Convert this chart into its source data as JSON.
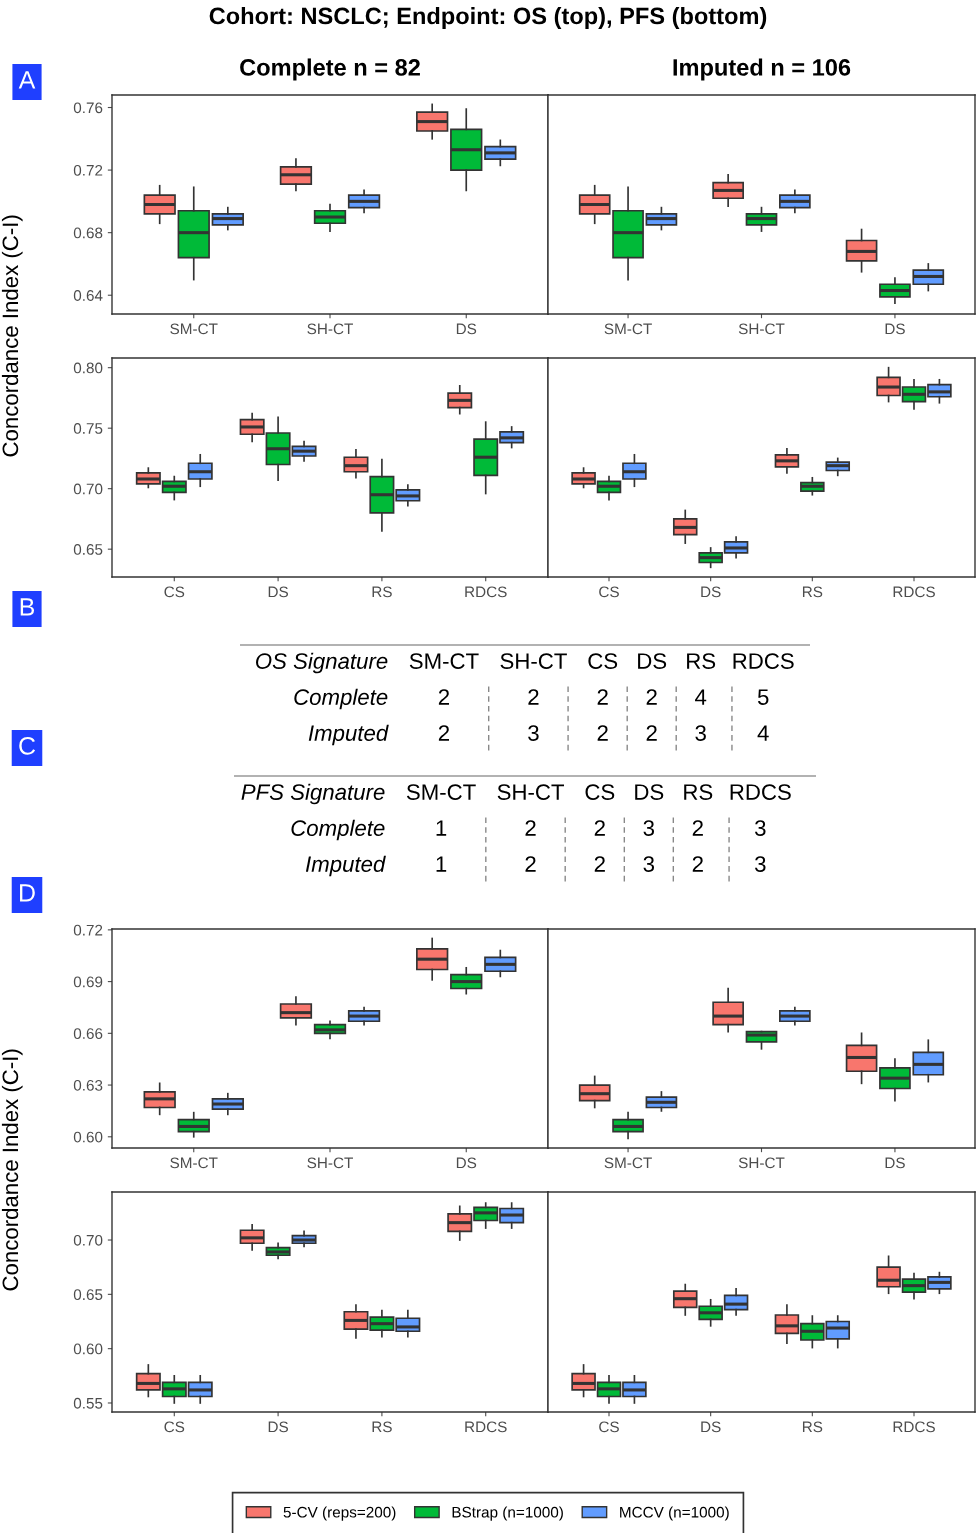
{
  "chart_data": [
    {
      "type": "box",
      "title": "Complete n = 82",
      "ylabel": "Concordance Index (C-I)",
      "annotations": [
        "Cohort: NSCLC; Endpoint: OS (top), PFS (bottom)",
        "A"
      ],
      "categories": [
        "SM-CT",
        "SH-CT",
        "DS"
      ],
      "ylim": [
        0.628,
        0.768
      ],
      "yticks": [
        {
          "value": 0.64,
          "label": "0.64"
        },
        {
          "value": 0.68,
          "label": "0.68"
        },
        {
          "value": 0.72,
          "label": "0.72"
        },
        {
          "value": 0.76,
          "label": "0.76"
        }
      ],
      "grid": false,
      "legend": "bottom",
      "series": [
        {
          "name": "5-CV (reps=200)",
          "color": "#f8766d",
          "boxes": [
            {
              "low": 0.686,
              "q1": 0.692,
              "median": 0.698,
              "q3": 0.704,
              "high": 0.71
            },
            {
              "low": 0.707,
              "q1": 0.711,
              "median": 0.717,
              "q3": 0.722,
              "high": 0.727
            },
            {
              "low": 0.74,
              "q1": 0.745,
              "median": 0.751,
              "q3": 0.757,
              "high": 0.762
            }
          ]
        },
        {
          "name": "BStrap (n=1000)",
          "color": "#00ba38",
          "boxes": [
            {
              "low": 0.65,
              "q1": 0.664,
              "median": 0.68,
              "q3": 0.694,
              "high": 0.709
            },
            {
              "low": 0.681,
              "q1": 0.686,
              "median": 0.69,
              "q3": 0.694,
              "high": 0.698
            },
            {
              "low": 0.707,
              "q1": 0.72,
              "median": 0.733,
              "q3": 0.746,
              "high": 0.759
            }
          ]
        },
        {
          "name": "MCCV (n=1000)",
          "color": "#619cff",
          "boxes": [
            {
              "low": 0.682,
              "q1": 0.685,
              "median": 0.689,
              "q3": 0.692,
              "high": 0.696
            },
            {
              "low": 0.693,
              "q1": 0.696,
              "median": 0.7,
              "q3": 0.704,
              "high": 0.707
            },
            {
              "low": 0.723,
              "q1": 0.727,
              "median": 0.731,
              "q3": 0.735,
              "high": 0.739
            }
          ]
        }
      ]
    },
    {
      "type": "box",
      "title": "Imputed n = 106",
      "categories": [
        "SM-CT",
        "SH-CT",
        "DS"
      ],
      "ylim": [
        0.628,
        0.768
      ],
      "tick_labels": "x",
      "grid": false,
      "series": [
        {
          "color": "#f8766d",
          "boxes": [
            {
              "low": 0.686,
              "q1": 0.692,
              "median": 0.698,
              "q3": 0.704,
              "high": 0.71
            },
            {
              "low": 0.697,
              "q1": 0.702,
              "median": 0.707,
              "q3": 0.712,
              "high": 0.717
            },
            {
              "low": 0.655,
              "q1": 0.662,
              "median": 0.668,
              "q3": 0.675,
              "high": 0.682
            }
          ]
        },
        {
          "color": "#00ba38",
          "boxes": [
            {
              "low": 0.65,
              "q1": 0.664,
              "median": 0.68,
              "q3": 0.694,
              "high": 0.709
            },
            {
              "low": 0.681,
              "q1": 0.685,
              "median": 0.689,
              "q3": 0.692,
              "high": 0.696
            },
            {
              "low": 0.635,
              "q1": 0.639,
              "median": 0.643,
              "q3": 0.647,
              "high": 0.651
            }
          ]
        },
        {
          "color": "#619cff",
          "boxes": [
            {
              "low": 0.682,
              "q1": 0.685,
              "median": 0.689,
              "q3": 0.692,
              "high": 0.696
            },
            {
              "low": 0.693,
              "q1": 0.696,
              "median": 0.7,
              "q3": 0.704,
              "high": 0.707
            },
            {
              "low": 0.643,
              "q1": 0.647,
              "median": 0.652,
              "q3": 0.656,
              "high": 0.66
            }
          ]
        }
      ]
    },
    {
      "type": "box",
      "categories": [
        "CS",
        "DS",
        "RS",
        "RDCS"
      ],
      "ylim": [
        0.627,
        0.808
      ],
      "yticks": [
        {
          "value": 0.65,
          "label": "0.65"
        },
        {
          "value": 0.7,
          "label": "0.70"
        },
        {
          "value": 0.75,
          "label": "0.75"
        },
        {
          "value": 0.8,
          "label": "0.80"
        }
      ],
      "grid": false,
      "series": [
        {
          "color": "#f8766d",
          "boxes": [
            {
              "low": 0.701,
              "q1": 0.704,
              "median": 0.708,
              "q3": 0.713,
              "high": 0.717
            },
            {
              "low": 0.739,
              "q1": 0.745,
              "median": 0.751,
              "q3": 0.757,
              "high": 0.762
            },
            {
              "low": 0.709,
              "q1": 0.714,
              "median": 0.719,
              "q3": 0.726,
              "high": 0.732
            },
            {
              "low": 0.762,
              "q1": 0.767,
              "median": 0.773,
              "q3": 0.779,
              "high": 0.785
            }
          ]
        },
        {
          "color": "#00ba38",
          "boxes": [
            {
              "low": 0.691,
              "q1": 0.697,
              "median": 0.702,
              "q3": 0.706,
              "high": 0.71
            },
            {
              "low": 0.707,
              "q1": 0.72,
              "median": 0.733,
              "q3": 0.746,
              "high": 0.759
            },
            {
              "low": 0.665,
              "q1": 0.68,
              "median": 0.695,
              "q3": 0.71,
              "high": 0.724
            },
            {
              "low": 0.696,
              "q1": 0.711,
              "median": 0.726,
              "q3": 0.741,
              "high": 0.755
            }
          ]
        },
        {
          "color": "#619cff",
          "boxes": [
            {
              "low": 0.702,
              "q1": 0.708,
              "median": 0.714,
              "q3": 0.721,
              "high": 0.728
            },
            {
              "low": 0.723,
              "q1": 0.727,
              "median": 0.731,
              "q3": 0.735,
              "high": 0.739
            },
            {
              "low": 0.686,
              "q1": 0.69,
              "median": 0.694,
              "q3": 0.699,
              "high": 0.703
            },
            {
              "low": 0.734,
              "q1": 0.738,
              "median": 0.742,
              "q3": 0.747,
              "high": 0.751
            }
          ]
        }
      ]
    },
    {
      "type": "box",
      "categories": [
        "CS",
        "DS",
        "RS",
        "RDCS"
      ],
      "ylim": [
        0.627,
        0.808
      ],
      "tick_labels": "x",
      "grid": false,
      "series": [
        {
          "color": "#f8766d",
          "boxes": [
            {
              "low": 0.701,
              "q1": 0.704,
              "median": 0.708,
              "q3": 0.713,
              "high": 0.717
            },
            {
              "low": 0.655,
              "q1": 0.662,
              "median": 0.668,
              "q3": 0.675,
              "high": 0.682
            },
            {
              "low": 0.713,
              "q1": 0.718,
              "median": 0.723,
              "q3": 0.728,
              "high": 0.733
            },
            {
              "low": 0.772,
              "q1": 0.777,
              "median": 0.784,
              "q3": 0.792,
              "high": 0.8
            }
          ]
        },
        {
          "color": "#00ba38",
          "boxes": [
            {
              "low": 0.691,
              "q1": 0.697,
              "median": 0.702,
              "q3": 0.706,
              "high": 0.71
            },
            {
              "low": 0.635,
              "q1": 0.639,
              "median": 0.643,
              "q3": 0.647,
              "high": 0.651
            },
            {
              "low": 0.695,
              "q1": 0.698,
              "median": 0.702,
              "q3": 0.705,
              "high": 0.709
            },
            {
              "low": 0.766,
              "q1": 0.772,
              "median": 0.778,
              "q3": 0.784,
              "high": 0.79
            }
          ]
        },
        {
          "color": "#619cff",
          "boxes": [
            {
              "low": 0.702,
              "q1": 0.708,
              "median": 0.714,
              "q3": 0.721,
              "high": 0.728
            },
            {
              "low": 0.643,
              "q1": 0.647,
              "median": 0.651,
              "q3": 0.656,
              "high": 0.66
            },
            {
              "low": 0.711,
              "q1": 0.715,
              "median": 0.719,
              "q3": 0.722,
              "high": 0.725
            },
            {
              "low": 0.771,
              "q1": 0.776,
              "median": 0.78,
              "q3": 0.786,
              "high": 0.79
            }
          ]
        }
      ]
    },
    {
      "type": "other",
      "title": "OS Signature",
      "annotations": [
        "B"
      ],
      "categories": [
        "SM-CT",
        "SH-CT",
        "CS",
        "DS",
        "RS",
        "RDCS"
      ],
      "y_categories": [
        "Complete",
        "Imputed"
      ],
      "cell_labels": [
        [
          "2",
          "2",
          "2",
          "2",
          "4",
          "5"
        ],
        [
          "2",
          "3",
          "2",
          "2",
          "3",
          "4"
        ]
      ]
    },
    {
      "type": "other",
      "title": "PFS Signature",
      "annotations": [
        "C"
      ],
      "categories": [
        "SM-CT",
        "SH-CT",
        "CS",
        "DS",
        "RS",
        "RDCS"
      ],
      "y_categories": [
        "Complete",
        "Imputed"
      ],
      "cell_labels": [
        [
          "1",
          "2",
          "2",
          "3",
          "2",
          "3"
        ],
        [
          "1",
          "2",
          "2",
          "3",
          "2",
          "3"
        ]
      ]
    },
    {
      "type": "box",
      "ylabel": "Concordance Index (C-I)",
      "annotations": [
        "D"
      ],
      "categories": [
        "SM-CT",
        "SH-CT",
        "DS"
      ],
      "ylim": [
        0.5935,
        0.7205
      ],
      "yticks": [
        {
          "value": 0.6,
          "label": "0.60"
        },
        {
          "value": 0.63,
          "label": "0.63"
        },
        {
          "value": 0.66,
          "label": "0.66"
        },
        {
          "value": 0.69,
          "label": "0.69"
        },
        {
          "value": 0.72,
          "label": "0.72"
        }
      ],
      "grid": false,
      "series": [
        {
          "color": "#f8766d",
          "boxes": [
            {
              "low": 0.613,
              "q1": 0.617,
              "median": 0.622,
              "q3": 0.626,
              "high": 0.631
            },
            {
              "low": 0.665,
              "q1": 0.669,
              "median": 0.672,
              "q3": 0.677,
              "high": 0.681
            },
            {
              "low": 0.691,
              "q1": 0.697,
              "median": 0.703,
              "q3": 0.709,
              "high": 0.715
            }
          ]
        },
        {
          "color": "#00ba38",
          "boxes": [
            {
              "low": 0.6,
              "q1": 0.603,
              "median": 0.606,
              "q3": 0.61,
              "high": 0.614
            },
            {
              "low": 0.657,
              "q1": 0.66,
              "median": 0.662,
              "q3": 0.665,
              "high": 0.667
            },
            {
              "low": 0.683,
              "q1": 0.686,
              "median": 0.69,
              "q3": 0.694,
              "high": 0.698
            }
          ]
        },
        {
          "color": "#619cff",
          "boxes": [
            {
              "low": 0.613,
              "q1": 0.616,
              "median": 0.619,
              "q3": 0.622,
              "high": 0.625
            },
            {
              "low": 0.665,
              "q1": 0.667,
              "median": 0.67,
              "q3": 0.673,
              "high": 0.675
            },
            {
              "low": 0.693,
              "q1": 0.696,
              "median": 0.7,
              "q3": 0.704,
              "high": 0.708
            }
          ]
        }
      ]
    },
    {
      "type": "box",
      "categories": [
        "SM-CT",
        "SH-CT",
        "DS"
      ],
      "ylim": [
        0.5935,
        0.7205
      ],
      "tick_labels": "x",
      "grid": false,
      "series": [
        {
          "color": "#f8766d",
          "boxes": [
            {
              "low": 0.617,
              "q1": 0.621,
              "median": 0.625,
              "q3": 0.63,
              "high": 0.635
            },
            {
              "low": 0.661,
              "q1": 0.665,
              "median": 0.67,
              "q3": 0.678,
              "high": 0.686
            },
            {
              "low": 0.631,
              "q1": 0.638,
              "median": 0.646,
              "q3": 0.653,
              "high": 0.66
            }
          ]
        },
        {
          "color": "#00ba38",
          "boxes": [
            {
              "low": 0.599,
              "q1": 0.603,
              "median": 0.606,
              "q3": 0.61,
              "high": 0.614
            },
            {
              "low": 0.651,
              "q1": 0.655,
              "median": 0.659,
              "q3": 0.661,
              "high": 0.661
            },
            {
              "low": 0.621,
              "q1": 0.628,
              "median": 0.634,
              "q3": 0.64,
              "high": 0.645
            }
          ]
        },
        {
          "color": "#619cff",
          "boxes": [
            {
              "low": 0.615,
              "q1": 0.617,
              "median": 0.62,
              "q3": 0.623,
              "high": 0.626
            },
            {
              "low": 0.665,
              "q1": 0.667,
              "median": 0.67,
              "q3": 0.673,
              "high": 0.675
            },
            {
              "low": 0.632,
              "q1": 0.636,
              "median": 0.642,
              "q3": 0.649,
              "high": 0.656
            }
          ]
        }
      ]
    },
    {
      "type": "box",
      "categories": [
        "CS",
        "DS",
        "RS",
        "RDCS"
      ],
      "ylim": [
        0.5417,
        0.7442
      ],
      "yticks": [
        {
          "value": 0.55,
          "label": "0.55"
        },
        {
          "value": 0.6,
          "label": "0.60"
        },
        {
          "value": 0.65,
          "label": "0.65"
        },
        {
          "value": 0.7,
          "label": "0.70"
        }
      ],
      "grid": false,
      "series": [
        {
          "color": "#f8766d",
          "boxes": [
            {
              "low": 0.556,
              "q1": 0.562,
              "median": 0.568,
              "q3": 0.577,
              "high": 0.585
            },
            {
              "low": 0.691,
              "q1": 0.697,
              "median": 0.702,
              "q3": 0.709,
              "high": 0.714
            },
            {
              "low": 0.61,
              "q1": 0.618,
              "median": 0.626,
              "q3": 0.634,
              "high": 0.64
            },
            {
              "low": 0.7,
              "q1": 0.708,
              "median": 0.716,
              "q3": 0.724,
              "high": 0.731
            }
          ]
        },
        {
          "color": "#00ba38",
          "boxes": [
            {
              "low": 0.55,
              "q1": 0.556,
              "median": 0.563,
              "q3": 0.569,
              "high": 0.575
            },
            {
              "low": 0.683,
              "q1": 0.686,
              "median": 0.689,
              "q3": 0.693,
              "high": 0.697
            },
            {
              "low": 0.611,
              "q1": 0.617,
              "median": 0.623,
              "q3": 0.629,
              "high": 0.635
            },
            {
              "low": 0.711,
              "q1": 0.718,
              "median": 0.725,
              "q3": 0.73,
              "high": 0.734
            }
          ]
        },
        {
          "color": "#619cff",
          "boxes": [
            {
              "low": 0.55,
              "q1": 0.556,
              "median": 0.562,
              "q3": 0.569,
              "high": 0.575
            },
            {
              "low": 0.694,
              "q1": 0.697,
              "median": 0.7,
              "q3": 0.704,
              "high": 0.708
            },
            {
              "low": 0.611,
              "q1": 0.616,
              "median": 0.62,
              "q3": 0.628,
              "high": 0.635
            },
            {
              "low": 0.711,
              "q1": 0.716,
              "median": 0.723,
              "q3": 0.729,
              "high": 0.734
            }
          ]
        }
      ]
    },
    {
      "type": "box",
      "categories": [
        "CS",
        "DS",
        "RS",
        "RDCS"
      ],
      "ylim": [
        0.5417,
        0.7442
      ],
      "tick_labels": "x",
      "grid": false,
      "series": [
        {
          "color": "#f8766d",
          "boxes": [
            {
              "low": 0.556,
              "q1": 0.562,
              "median": 0.568,
              "q3": 0.577,
              "high": 0.585
            },
            {
              "low": 0.631,
              "q1": 0.638,
              "median": 0.646,
              "q3": 0.653,
              "high": 0.659
            },
            {
              "low": 0.605,
              "q1": 0.614,
              "median": 0.621,
              "q3": 0.631,
              "high": 0.64
            },
            {
              "low": 0.651,
              "q1": 0.657,
              "median": 0.663,
              "q3": 0.675,
              "high": 0.685
            }
          ]
        },
        {
          "color": "#00ba38",
          "boxes": [
            {
              "low": 0.55,
              "q1": 0.556,
              "median": 0.563,
              "q3": 0.569,
              "high": 0.575
            },
            {
              "low": 0.621,
              "q1": 0.627,
              "median": 0.633,
              "q3": 0.639,
              "high": 0.645
            },
            {
              "low": 0.601,
              "q1": 0.608,
              "median": 0.616,
              "q3": 0.623,
              "high": 0.63
            },
            {
              "low": 0.646,
              "q1": 0.652,
              "median": 0.658,
              "q3": 0.664,
              "high": 0.669
            }
          ]
        },
        {
          "color": "#619cff",
          "boxes": [
            {
              "low": 0.55,
              "q1": 0.556,
              "median": 0.562,
              "q3": 0.569,
              "high": 0.575
            },
            {
              "low": 0.631,
              "q1": 0.636,
              "median": 0.641,
              "q3": 0.649,
              "high": 0.655
            },
            {
              "low": 0.601,
              "q1": 0.609,
              "median": 0.619,
              "q3": 0.625,
              "high": 0.63
            },
            {
              "low": 0.651,
              "q1": 0.655,
              "median": 0.661,
              "q3": 0.666,
              "high": 0.67
            }
          ]
        }
      ]
    }
  ]
}
